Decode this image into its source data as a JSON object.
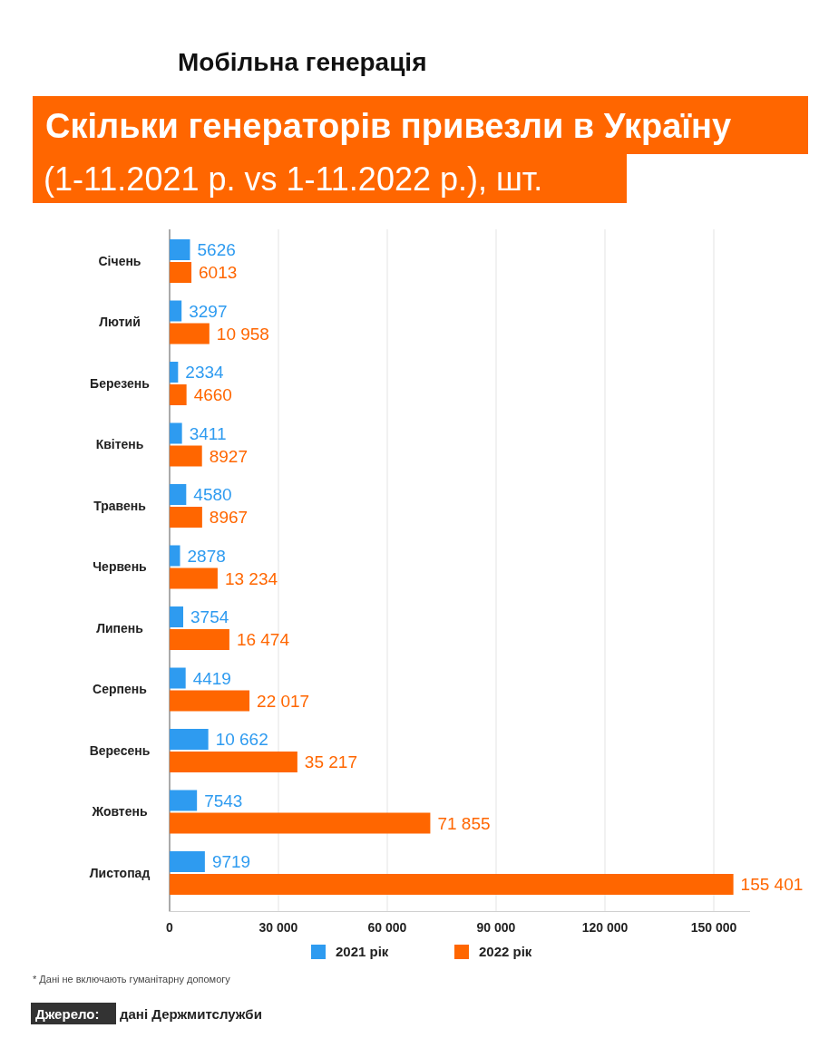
{
  "chart_data": {
    "type": "bar",
    "orientation": "horizontal",
    "title": "Скільки генераторів привезли в Україну",
    "subtitle": "(1-11.2021 р. vs 1-11.2022 р.), шт.",
    "categories": [
      "Січень",
      "Лютий",
      "Березень",
      "Квітень",
      "Травень",
      "Червень",
      "Липень",
      "Серпень",
      "Вересень",
      "Жовтень",
      "Листопад"
    ],
    "series": [
      {
        "name": "2021 рік",
        "color": "#2e9bf0",
        "values": [
          5626,
          3297,
          2334,
          3411,
          4580,
          2878,
          3754,
          4419,
          10662,
          7543,
          9719
        ],
        "value_labels": [
          "5626",
          "3297",
          "2334",
          "3411",
          "4580",
          "2878",
          "3754",
          "4419",
          "10 662",
          "7543",
          "9719"
        ]
      },
      {
        "name": "2022 рік",
        "color": "#ff6600",
        "values": [
          6013,
          10958,
          4660,
          8927,
          8967,
          13234,
          16474,
          22017,
          35217,
          71855,
          155401
        ],
        "value_labels": [
          "6013",
          "10 958",
          "4660",
          "8927",
          "8967",
          "13 234",
          "16 474",
          "22 017",
          "35 217",
          "71 855",
          "155 401"
        ]
      }
    ],
    "xlim": [
      0,
      160000
    ],
    "xticks": [
      0,
      {
        "value": 30000,
        "label": "30 000"
      },
      {
        "value": 60000,
        "label": "60 000"
      },
      {
        "value": 90000,
        "label": "90 000"
      },
      {
        "value": 120000,
        "label": "120 000"
      },
      {
        "value": 150000,
        "label": "150 000"
      }
    ],
    "grid": "x",
    "legend": "bottom",
    "annotations": [
      "Мобільна генерація",
      "* Дані не включають гуманітарну допомогу",
      "Джерело: дані Держмитслужби"
    ]
  }
}
